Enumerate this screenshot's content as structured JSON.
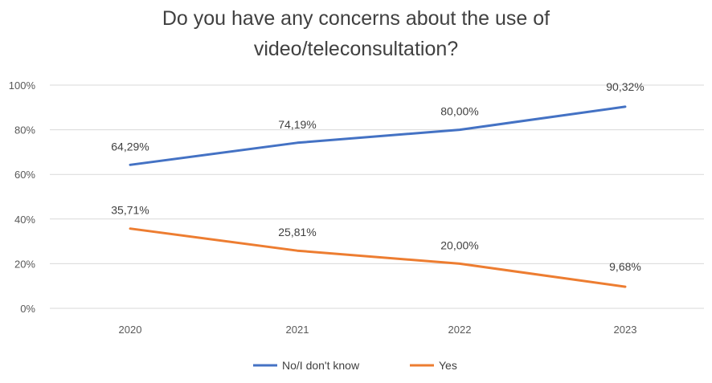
{
  "chart_data": {
    "type": "line",
    "title_lines": [
      "Do you have any concerns about the use of",
      "video/teleconsultation?"
    ],
    "categories": [
      "2020",
      "2021",
      "2022",
      "2023"
    ],
    "y_ticks": [
      "0%",
      "20%",
      "40%",
      "60%",
      "80%",
      "100%"
    ],
    "ylim": [
      0,
      100
    ],
    "grid": true,
    "legend_position": "bottom",
    "series": [
      {
        "name": "No/I don't know",
        "color": "#4472C4",
        "values": [
          64.29,
          74.19,
          80.0,
          90.32
        ],
        "labels": [
          "64,29%",
          "74,19%",
          "80,00%",
          "90,32%"
        ]
      },
      {
        "name": "Yes",
        "color": "#ED7D31",
        "values": [
          35.71,
          25.81,
          20.0,
          9.68
        ],
        "labels": [
          "35,71%",
          "25,81%",
          "20,00%",
          "9,68%"
        ]
      }
    ]
  }
}
